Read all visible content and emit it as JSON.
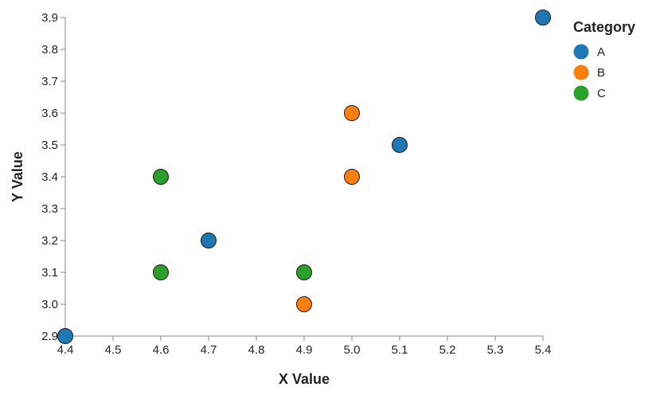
{
  "chart_data": {
    "type": "scatter",
    "xlabel": "X Value",
    "ylabel": "Y Value",
    "xlim": [
      4.4,
      5.4
    ],
    "ylim": [
      2.9,
      3.9
    ],
    "x_ticks": [
      "4.4",
      "4.5",
      "4.6",
      "4.7",
      "4.8",
      "4.9",
      "5.0",
      "5.1",
      "5.2",
      "5.3",
      "5.4"
    ],
    "y_ticks": [
      "2.9",
      "3.0",
      "3.1",
      "3.2",
      "3.3",
      "3.4",
      "3.5",
      "3.6",
      "3.7",
      "3.8",
      "3.9"
    ],
    "grid": false,
    "legend": {
      "title": "Category",
      "placement": "top-right"
    },
    "series": [
      {
        "name": "A",
        "color": "#1f77b4",
        "points": [
          {
            "x": 4.4,
            "y": 2.9
          },
          {
            "x": 4.7,
            "y": 3.2
          },
          {
            "x": 5.1,
            "y": 3.5
          },
          {
            "x": 5.4,
            "y": 3.9
          }
        ]
      },
      {
        "name": "B",
        "color": "#ff7f0e",
        "points": [
          {
            "x": 4.9,
            "y": 3.0
          },
          {
            "x": 5.0,
            "y": 3.4
          },
          {
            "x": 5.0,
            "y": 3.6
          }
        ]
      },
      {
        "name": "C",
        "color": "#2ca02c",
        "points": [
          {
            "x": 4.6,
            "y": 3.1
          },
          {
            "x": 4.6,
            "y": 3.4
          },
          {
            "x": 4.9,
            "y": 3.1
          }
        ]
      }
    ]
  }
}
